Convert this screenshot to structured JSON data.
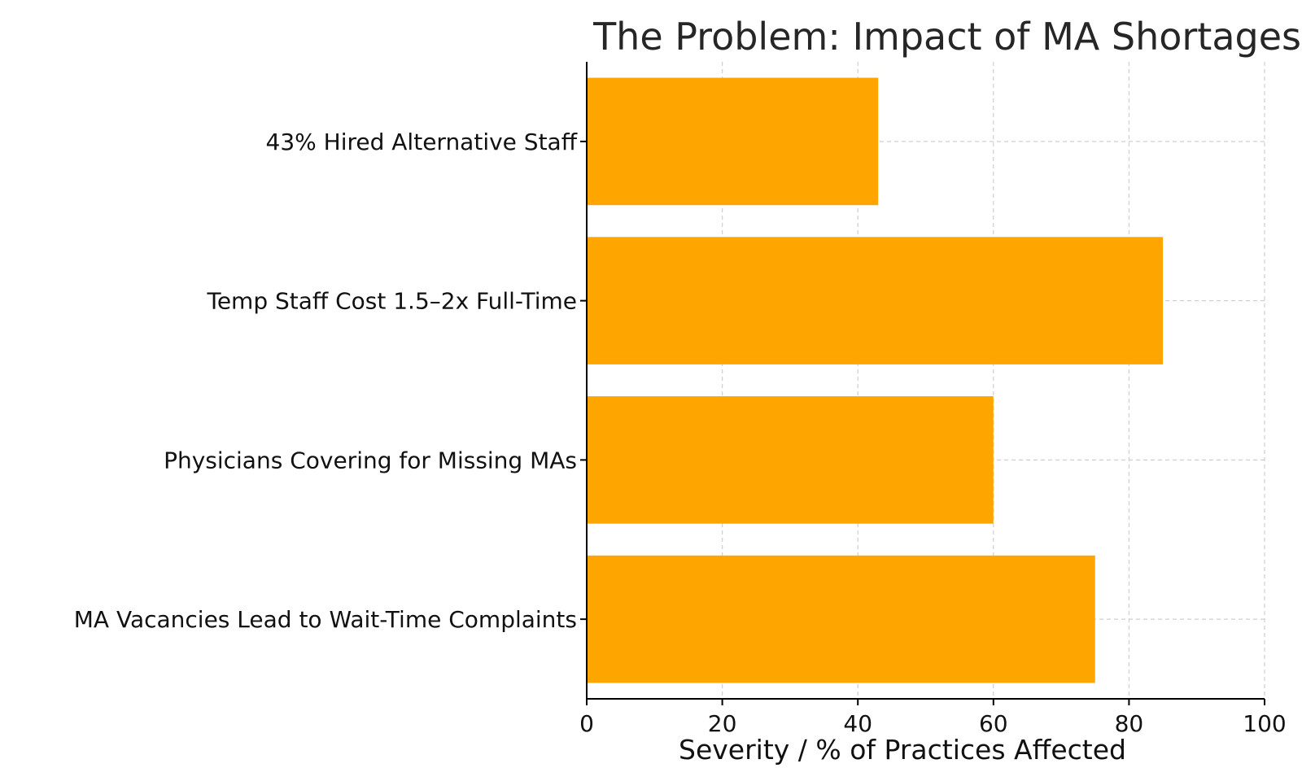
{
  "chart_data": {
    "type": "bar",
    "orientation": "horizontal",
    "title": "The Problem: Impact of MA Shortages",
    "xlabel": "Severity / % of Practices Affected",
    "ylabel": "",
    "categories": [
      "MA Vacancies Lead to Wait-Time Complaints",
      "Physicians Covering for Missing MAs",
      "Temp Staff Cost 1.5–2x Full-Time",
      "43% Hired Alternative Staff"
    ],
    "values": [
      75,
      60,
      85,
      43
    ],
    "xlim": [
      0,
      100
    ],
    "xticks": [
      0,
      20,
      40,
      60,
      80,
      100
    ],
    "grid": true,
    "bar_color": "#FFA500"
  }
}
